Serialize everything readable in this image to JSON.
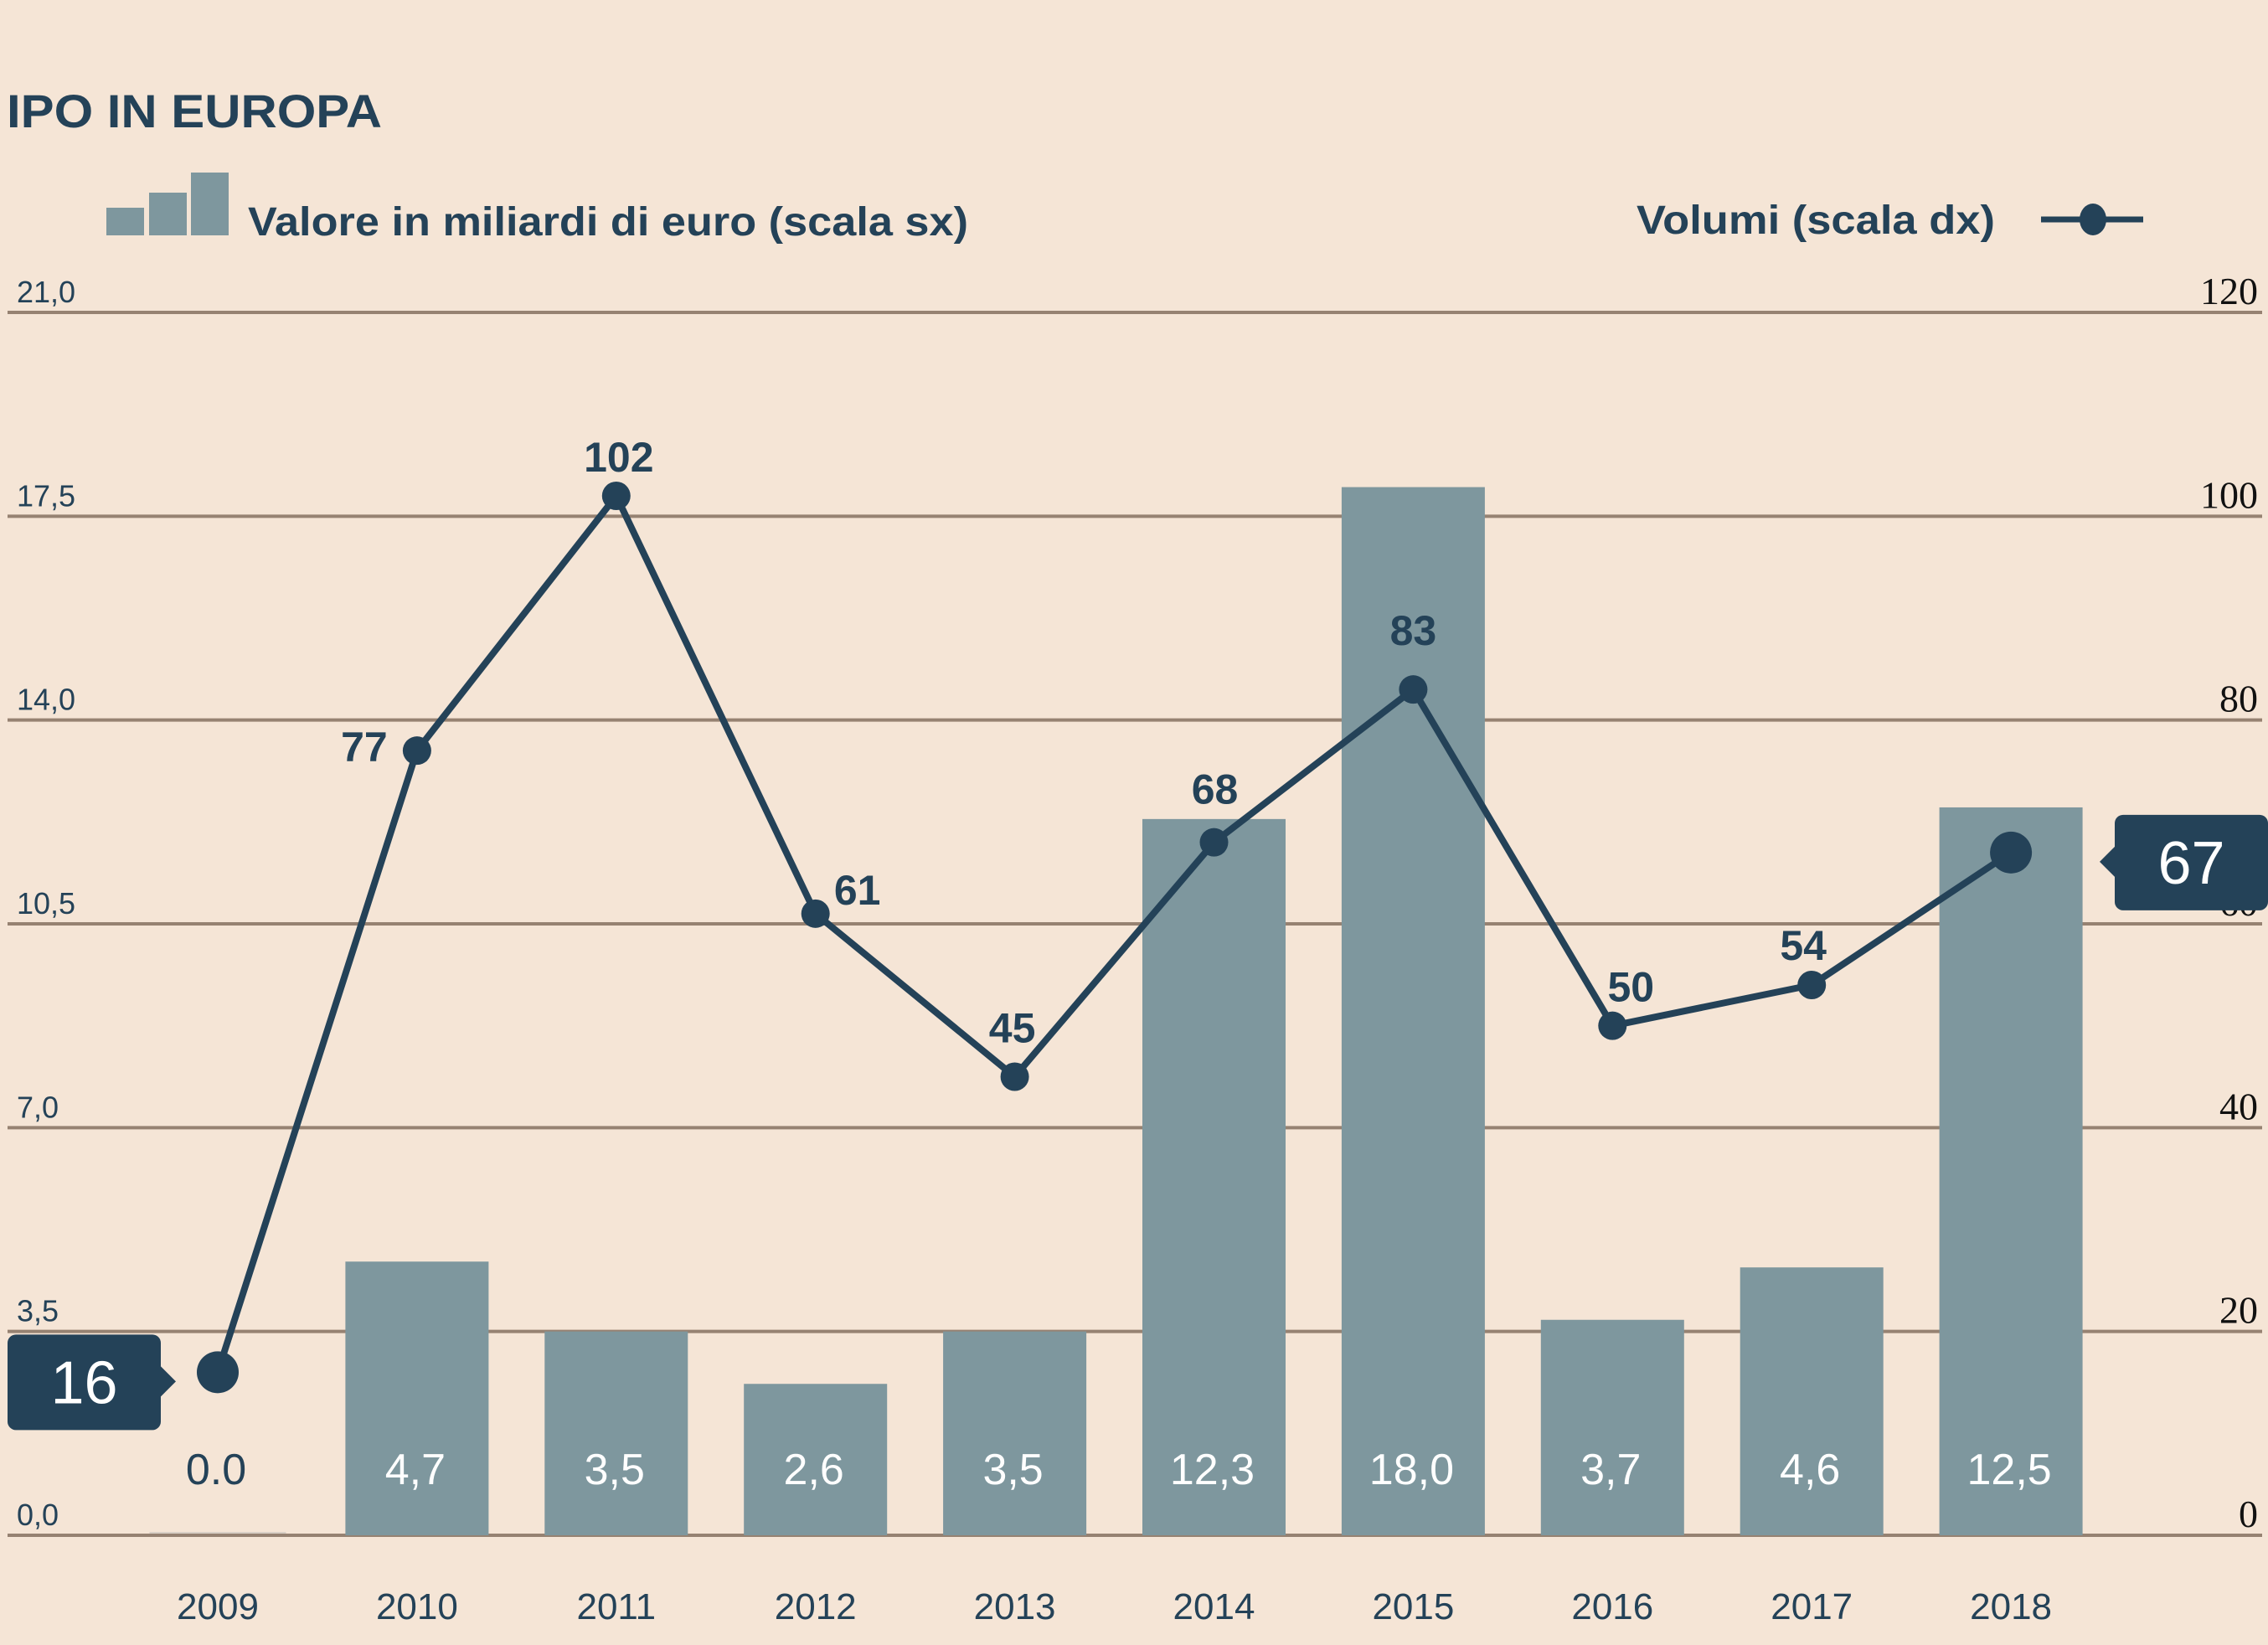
{
  "colors": {
    "background": "#f5e5d6",
    "bar": "#7e979e",
    "line": "#244258",
    "grid": "#968272",
    "text": "#244258",
    "right_axis_text": "#111111",
    "callout_bg": "#244258",
    "callout_text": "#ffffff"
  },
  "chart_data": {
    "type": "bar+line",
    "title": "IPO IN EUROPA",
    "categories": [
      "2009",
      "2010",
      "2011",
      "2012",
      "2013",
      "2014",
      "2015",
      "2016",
      "2017",
      "2018"
    ],
    "series": [
      {
        "name": "Valore in miliardi di euro (scala sx)",
        "type": "bar",
        "axis": "left",
        "values": [
          0.0,
          4.7,
          3.5,
          2.6,
          3.5,
          12.3,
          18.0,
          3.7,
          4.6,
          12.5
        ],
        "labels": [
          "0.0",
          "4,7",
          "3,5",
          "2,6",
          "3,5",
          "12,3",
          "18,0",
          "3,7",
          "4,6",
          "12,5"
        ]
      },
      {
        "name": "Volumi (scala dx)",
        "type": "line",
        "axis": "right",
        "values": [
          16,
          77,
          102,
          61,
          45,
          68,
          83,
          50,
          54,
          67
        ],
        "labels": [
          "16",
          "77",
          "102",
          "61",
          "45",
          "68",
          "83",
          "50",
          "54",
          "67"
        ],
        "highlighted": [
          "2009",
          "2018"
        ]
      }
    ],
    "left_axis": {
      "ylim": [
        0,
        21
      ],
      "ticks": [
        0,
        3.5,
        7,
        10.5,
        14,
        17.5,
        21
      ],
      "tick_labels": [
        "0,0",
        "3,5",
        "7,0",
        "10,5",
        "14,0",
        "17,5",
        "21,0"
      ]
    },
    "right_axis": {
      "ylim": [
        0,
        120
      ],
      "ticks": [
        0,
        20,
        40,
        60,
        80,
        100,
        120
      ],
      "tick_labels": [
        "0",
        "20",
        "40",
        "60",
        "80",
        "100",
        "120"
      ]
    },
    "grid": true,
    "legend": [
      {
        "label": "Valore in miliardi di euro (scala sx)",
        "marker": "bars",
        "placement": "top-left"
      },
      {
        "label": "Volumi (scala dx)",
        "marker": "line-dot",
        "placement": "top-right"
      }
    ]
  }
}
